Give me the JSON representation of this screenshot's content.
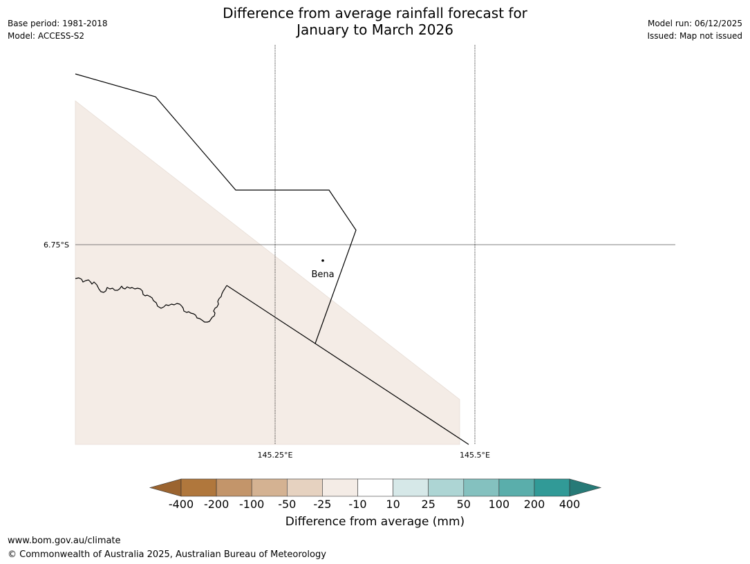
{
  "header": {
    "title_line1": "Difference from average rainfall forecast for",
    "title_line2": "January to March 2026",
    "base_period": "Base period: 1981-2018",
    "model": "Model: ACCESS-S2",
    "model_run": "Model run: 06/12/2025",
    "issued": "Issued: Map not issued"
  },
  "map": {
    "latitude_labels": [
      "6.75°S"
    ],
    "longitude_labels": [
      "145.25°E",
      "145.5°E"
    ],
    "place_label": "Bena",
    "shaded_category": "-25 to -10",
    "colors": {
      "shade": "#f4ece6",
      "boundary": "#000000",
      "grid": "#555555"
    }
  },
  "colorbar": {
    "labels": [
      "-400",
      "-200",
      "-100",
      "-50",
      "-25",
      "-10",
      "10",
      "25",
      "50",
      "100",
      "200",
      "400"
    ],
    "colors": [
      "#9b6430",
      "#b0773c",
      "#c3956a",
      "#d4b292",
      "#e6d2c0",
      "#f4ece6",
      "#ffffff",
      "#d6e8e8",
      "#add5d4",
      "#84c1bf",
      "#5aaeab",
      "#319a97",
      "#277a77"
    ],
    "title": "Difference from average (mm)"
  },
  "footer": {
    "url": "www.bom.gov.au/climate",
    "copyright": "© Commonwealth of Australia 2025, Australian Bureau of Meteorology"
  }
}
